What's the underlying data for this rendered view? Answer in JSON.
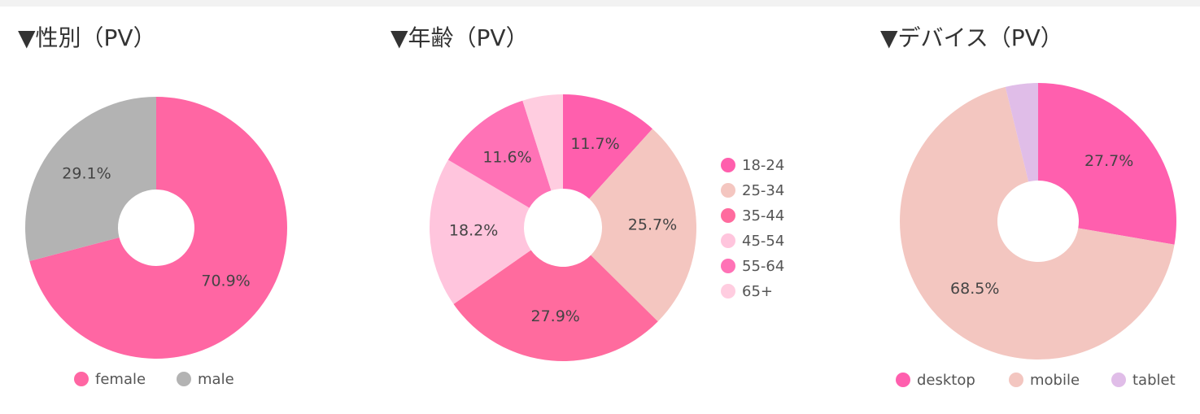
{
  "chart_data": [
    {
      "type": "pie",
      "title": "▼性別（PV）",
      "legend": "bottom",
      "categories": [
        "female",
        "male"
      ],
      "values": [
        70.9,
        29.1
      ],
      "value_labels": [
        "70.9%",
        "29.1%"
      ],
      "colors": [
        "#ff66a3",
        "#b3b3b3"
      ]
    },
    {
      "type": "pie",
      "title": "▼年齢（PV）",
      "legend": "right",
      "categories": [
        "18-24",
        "25-34",
        "35-44",
        "45-54",
        "55-64",
        "65+"
      ],
      "values": [
        11.7,
        25.7,
        27.9,
        18.2,
        11.6,
        4.9
      ],
      "value_labels": [
        "11.7%",
        "25.7%",
        "27.9%",
        "18.2%",
        "11.6%",
        null
      ],
      "colors": [
        "#ff5fad",
        "#f4c6c0",
        "#ff6b9e",
        "#ffc5dd",
        "#ff72b6",
        "#ffcde0"
      ]
    },
    {
      "type": "pie",
      "title": "▼デバイス（PV）",
      "legend": "bottom",
      "categories": [
        "desktop",
        "mobile",
        "tablet"
      ],
      "values": [
        27.7,
        68.5,
        3.8
      ],
      "value_labels": [
        "27.7%",
        "68.5%",
        null
      ],
      "colors": [
        "#ff5fae",
        "#f3c6c0",
        "#e0bde8"
      ]
    }
  ]
}
